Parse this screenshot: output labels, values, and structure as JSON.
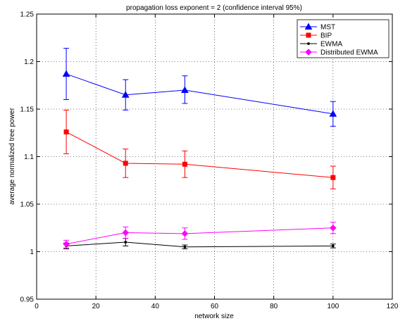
{
  "chart_data": {
    "type": "line",
    "title": "propagation loss exponent = 2 (confidence interval 95%)",
    "xlabel": "network size",
    "ylabel": "average normalized tree power",
    "xlim": [
      0,
      120
    ],
    "ylim": [
      0.95,
      1.25
    ],
    "xticks": [
      0,
      20,
      40,
      60,
      80,
      100,
      120
    ],
    "yticks": [
      0.95,
      1,
      1.05,
      1.1,
      1.15,
      1.2,
      1.25
    ],
    "xtick_labels": [
      "0",
      "20",
      "40",
      "60",
      "80",
      "100",
      "120"
    ],
    "ytick_labels": [
      "0.95",
      "1",
      "1.05",
      "1.1",
      "1.15",
      "1.2",
      "1.25"
    ],
    "grid": true,
    "legend_position": "top-right",
    "x": [
      10,
      30,
      50,
      100
    ],
    "series": [
      {
        "name": "MST",
        "color": "#0000ff",
        "marker": "triangle",
        "values": [
          1.187,
          1.165,
          1.17,
          1.145
        ],
        "err_low": [
          1.16,
          1.149,
          1.156,
          1.132
        ],
        "err_high": [
          1.214,
          1.181,
          1.185,
          1.158
        ]
      },
      {
        "name": "BIP",
        "color": "#ff0000",
        "marker": "square",
        "values": [
          1.126,
          1.093,
          1.092,
          1.078
        ],
        "err_low": [
          1.103,
          1.078,
          1.078,
          1.066
        ],
        "err_high": [
          1.149,
          1.108,
          1.106,
          1.09
        ]
      },
      {
        "name": "EWMA",
        "color": "#000000",
        "marker": "dot",
        "values": [
          1.006,
          1.01,
          1.005,
          1.006
        ],
        "err_low": [
          1.003,
          1.006,
          1.003,
          1.004
        ],
        "err_high": [
          1.009,
          1.014,
          1.007,
          1.008
        ]
      },
      {
        "name": "Distributed EWMA",
        "color": "#ff00ff",
        "marker": "diamond",
        "values": [
          1.008,
          1.02,
          1.019,
          1.025
        ],
        "err_low": [
          1.004,
          1.014,
          1.013,
          1.019
        ],
        "err_high": [
          1.012,
          1.026,
          1.025,
          1.031
        ]
      }
    ]
  }
}
